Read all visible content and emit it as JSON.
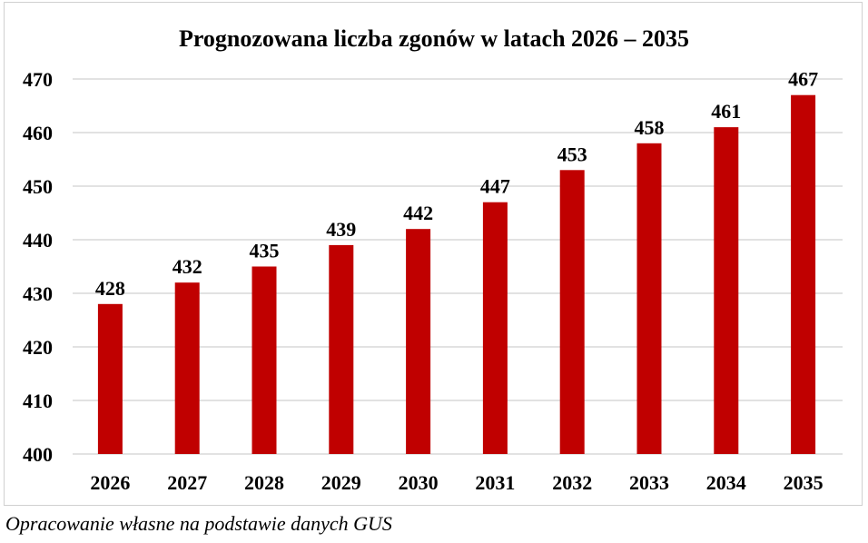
{
  "chart_data": {
    "type": "bar",
    "title": "Prognozowana liczba zgonów w latach 2026 – 2035",
    "xlabel": "",
    "ylabel": "",
    "categories": [
      "2026",
      "2027",
      "2028",
      "2029",
      "2030",
      "2031",
      "2032",
      "2033",
      "2034",
      "2035"
    ],
    "values": [
      428,
      432,
      435,
      439,
      442,
      447,
      453,
      458,
      461,
      467
    ],
    "ylim": [
      400,
      470
    ],
    "yticks": [
      400,
      410,
      420,
      430,
      440,
      450,
      460,
      470
    ],
    "grid": true,
    "legend": "none",
    "bar_color": "#C00000",
    "grid_color": "#D9D9D9"
  },
  "caption": "Opracowanie własne na podstawie danych GUS"
}
